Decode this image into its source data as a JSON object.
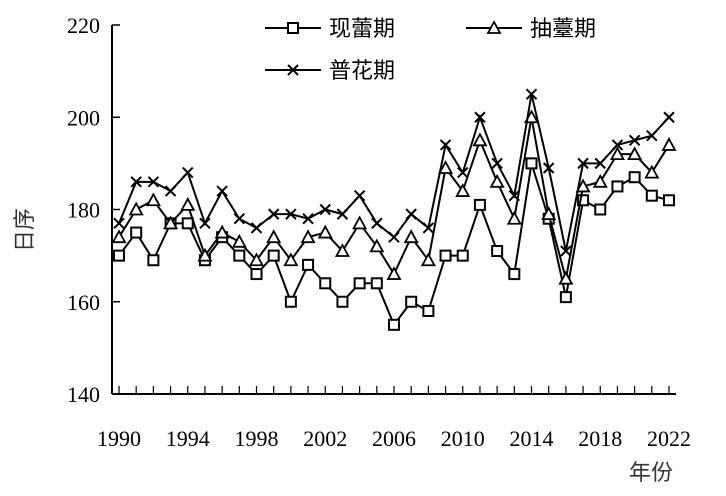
{
  "chart_data": {
    "type": "line",
    "xlabel": "年份",
    "ylabel": "日序",
    "ylim": [
      140,
      220
    ],
    "y_ticks": [
      140,
      160,
      180,
      200,
      220
    ],
    "x_ticks": [
      1990,
      1994,
      1998,
      2002,
      2006,
      2010,
      2014,
      2018,
      2022
    ],
    "x": [
      1990,
      1991,
      1992,
      1993,
      1994,
      1995,
      1996,
      1997,
      1998,
      1999,
      2000,
      2001,
      2002,
      2003,
      2004,
      2005,
      2006,
      2007,
      2008,
      2009,
      2010,
      2011,
      2012,
      2013,
      2014,
      2015,
      2016,
      2017,
      2018,
      2019,
      2020,
      2021,
      2022
    ],
    "grid": false,
    "legend_position": "top-right",
    "series": [
      {
        "name": "现蕾期",
        "marker": "square",
        "values": [
          170,
          175,
          169,
          177,
          177,
          169,
          174,
          170,
          166,
          170,
          160,
          168,
          164,
          160,
          164,
          164,
          155,
          160,
          158,
          170,
          170,
          181,
          171,
          166,
          190,
          178,
          161,
          182,
          180,
          185,
          187,
          183,
          182
        ]
      },
      {
        "name": "抽薹期",
        "marker": "triangle",
        "values": [
          174,
          180,
          182,
          177,
          181,
          170,
          175,
          173,
          169,
          174,
          169,
          174,
          175,
          171,
          177,
          172,
          166,
          174,
          169,
          189,
          184,
          195,
          186,
          178,
          200,
          179,
          165,
          185,
          186,
          192,
          192,
          188,
          194
        ]
      },
      {
        "name": "普花期",
        "marker": "x",
        "values": [
          177,
          186,
          186,
          184,
          188,
          177,
          184,
          178,
          176,
          179,
          179,
          178,
          180,
          179,
          183,
          177,
          174,
          179,
          176,
          194,
          188,
          200,
          190,
          183,
          205,
          189,
          171,
          190,
          190,
          194,
          195,
          196,
          200
        ]
      }
    ]
  }
}
